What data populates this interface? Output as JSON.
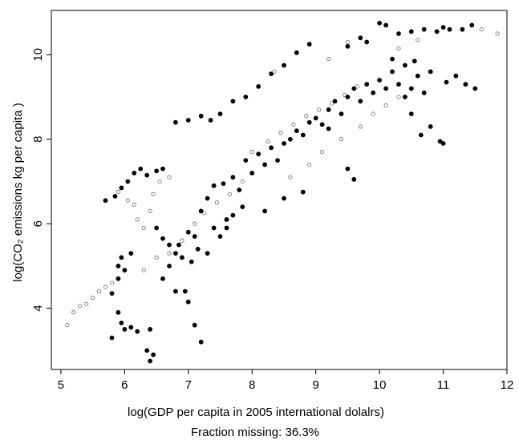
{
  "chart_data": {
    "type": "scatter",
    "xlabel": "log(GDP per capita in 2005 international dolalrs)",
    "ylabel": "log(CO₂ emissions kg per capita )",
    "caption": "Fraction missing: 36.3%",
    "xlim": [
      4.85,
      12.0
    ],
    "ylim": [
      2.55,
      11.05
    ],
    "xticks": [
      5,
      6,
      7,
      8,
      9,
      10,
      11,
      12
    ],
    "yticks": [
      4,
      6,
      8,
      10
    ],
    "grid": false,
    "legend": "none",
    "colors": {
      "observed": "#000000",
      "imputed_stroke": "#555555",
      "imputed_fill": "#ffffff"
    },
    "series": [
      {
        "marker": "filled",
        "points": [
          [
            5.7,
            6.55
          ],
          [
            5.85,
            6.65
          ],
          [
            5.95,
            6.85
          ],
          [
            6.05,
            7.0
          ],
          [
            6.15,
            7.2
          ],
          [
            6.25,
            7.3
          ],
          [
            6.35,
            7.15
          ],
          [
            6.5,
            7.25
          ],
          [
            6.6,
            7.3
          ],
          [
            6.8,
            8.4
          ],
          [
            7.0,
            8.45
          ],
          [
            7.2,
            8.55
          ],
          [
            7.35,
            8.45
          ],
          [
            7.5,
            8.6
          ],
          [
            7.7,
            8.9
          ],
          [
            7.9,
            9.0
          ],
          [
            8.1,
            9.25
          ],
          [
            8.3,
            9.55
          ],
          [
            8.5,
            9.75
          ],
          [
            8.7,
            10.05
          ],
          [
            8.9,
            10.25
          ],
          [
            9.5,
            10.2
          ],
          [
            9.7,
            10.4
          ],
          [
            9.8,
            10.3
          ],
          [
            10.0,
            10.75
          ],
          [
            10.1,
            10.7
          ],
          [
            10.3,
            10.5
          ],
          [
            10.5,
            10.55
          ],
          [
            10.7,
            10.6
          ],
          [
            10.9,
            10.55
          ],
          [
            11.0,
            10.65
          ],
          [
            11.1,
            10.6
          ],
          [
            11.3,
            10.6
          ],
          [
            11.45,
            10.7
          ],
          [
            11.2,
            9.5
          ],
          [
            11.35,
            9.3
          ],
          [
            11.5,
            9.2
          ],
          [
            11.05,
            9.35
          ],
          [
            10.65,
            8.1
          ],
          [
            10.8,
            8.3
          ],
          [
            10.95,
            7.95
          ],
          [
            11.0,
            7.9
          ],
          [
            10.5,
            8.6
          ],
          [
            9.2,
            8.25
          ],
          [
            9.5,
            7.3
          ],
          [
            9.6,
            7.05
          ],
          [
            8.8,
            6.75
          ],
          [
            8.5,
            6.6
          ],
          [
            8.2,
            6.3
          ],
          [
            7.6,
            6.1
          ],
          [
            7.4,
            5.9
          ],
          [
            7.1,
            5.7
          ],
          [
            6.9,
            5.2
          ],
          [
            6.8,
            4.4
          ],
          [
            6.95,
            4.4
          ],
          [
            7.0,
            4.15
          ],
          [
            7.1,
            3.6
          ],
          [
            7.2,
            3.2
          ],
          [
            6.4,
            3.5
          ],
          [
            6.35,
            3.0
          ],
          [
            6.4,
            2.75
          ],
          [
            6.45,
            2.9
          ],
          [
            6.2,
            3.45
          ],
          [
            6.0,
            3.5
          ],
          [
            6.1,
            3.55
          ],
          [
            5.95,
            3.65
          ],
          [
            5.9,
            3.9
          ],
          [
            5.8,
            3.3
          ],
          [
            5.8,
            4.35
          ],
          [
            5.9,
            4.7
          ],
          [
            6.0,
            4.9
          ],
          [
            5.9,
            5.0
          ],
          [
            5.95,
            5.2
          ],
          [
            6.1,
            5.3
          ],
          [
            6.5,
            5.9
          ],
          [
            6.6,
            5.65
          ],
          [
            6.7,
            5.5
          ],
          [
            6.8,
            5.3
          ],
          [
            7.2,
            6.3
          ],
          [
            7.3,
            6.6
          ],
          [
            7.4,
            6.9
          ],
          [
            7.55,
            6.95
          ],
          [
            7.7,
            7.1
          ],
          [
            7.8,
            6.8
          ],
          [
            7.9,
            7.5
          ],
          [
            8.0,
            7.2
          ],
          [
            8.1,
            7.65
          ],
          [
            8.2,
            7.4
          ],
          [
            8.3,
            7.8
          ],
          [
            8.4,
            7.5
          ],
          [
            8.5,
            7.9
          ],
          [
            8.6,
            8.0
          ],
          [
            8.7,
            8.2
          ],
          [
            8.8,
            8.1
          ],
          [
            8.9,
            8.4
          ],
          [
            9.0,
            8.5
          ],
          [
            9.1,
            8.35
          ],
          [
            9.2,
            8.7
          ],
          [
            9.3,
            8.9
          ],
          [
            9.4,
            8.6
          ],
          [
            9.5,
            9.0
          ],
          [
            9.6,
            9.2
          ],
          [
            9.7,
            8.9
          ],
          [
            9.8,
            9.3
          ],
          [
            9.9,
            9.1
          ],
          [
            10.0,
            9.4
          ],
          [
            10.1,
            9.2
          ],
          [
            10.2,
            9.6
          ],
          [
            10.3,
            9.3
          ],
          [
            10.4,
            9.0
          ],
          [
            10.5,
            9.2
          ],
          [
            10.6,
            9.5
          ],
          [
            10.7,
            9.1
          ],
          [
            10.8,
            9.6
          ],
          [
            10.55,
            9.85
          ],
          [
            10.4,
            9.75
          ],
          [
            10.2,
            9.9
          ],
          [
            6.6,
            4.7
          ],
          [
            6.7,
            5.0
          ],
          [
            6.85,
            5.5
          ],
          [
            7.0,
            5.8
          ],
          [
            7.05,
            5.1
          ],
          [
            7.15,
            5.4
          ],
          [
            7.3,
            5.3
          ],
          [
            7.5,
            5.7
          ],
          [
            7.6,
            5.9
          ],
          [
            7.7,
            6.2
          ],
          [
            7.85,
            6.4
          ]
        ]
      },
      {
        "marker": "hollow",
        "points": [
          [
            5.1,
            3.6
          ],
          [
            5.2,
            3.9
          ],
          [
            5.3,
            4.05
          ],
          [
            5.4,
            4.1
          ],
          [
            5.5,
            4.25
          ],
          [
            5.6,
            4.4
          ],
          [
            5.7,
            4.5
          ],
          [
            5.8,
            4.6
          ],
          [
            5.9,
            6.75
          ],
          [
            6.05,
            6.55
          ],
          [
            6.15,
            6.45
          ],
          [
            6.3,
            5.9
          ],
          [
            6.2,
            6.1
          ],
          [
            6.4,
            6.3
          ],
          [
            6.45,
            6.7
          ],
          [
            6.55,
            7.0
          ],
          [
            6.7,
            7.1
          ],
          [
            8.35,
            9.6
          ],
          [
            9.2,
            9.9
          ],
          [
            9.5,
            10.3
          ],
          [
            10.3,
            10.15
          ],
          [
            10.6,
            10.35
          ],
          [
            11.6,
            10.6
          ],
          [
            11.85,
            10.5
          ],
          [
            8.0,
            7.7
          ],
          [
            8.25,
            7.95
          ],
          [
            8.45,
            8.15
          ],
          [
            8.65,
            8.35
          ],
          [
            8.85,
            8.55
          ],
          [
            9.05,
            8.7
          ],
          [
            9.25,
            8.85
          ],
          [
            9.45,
            9.05
          ],
          [
            9.65,
            9.25
          ],
          [
            7.1,
            6.0
          ],
          [
            7.25,
            6.25
          ],
          [
            7.45,
            6.5
          ],
          [
            7.65,
            6.7
          ],
          [
            7.85,
            7.0
          ],
          [
            6.3,
            4.9
          ],
          [
            6.5,
            5.2
          ],
          [
            6.7,
            5.3
          ],
          [
            6.9,
            5.6
          ],
          [
            9.9,
            8.6
          ],
          [
            10.1,
            8.8
          ],
          [
            10.3,
            9.0
          ],
          [
            9.7,
            8.3
          ],
          [
            9.4,
            8.0
          ],
          [
            9.1,
            7.7
          ],
          [
            8.9,
            7.4
          ],
          [
            8.6,
            7.1
          ]
        ]
      }
    ]
  }
}
